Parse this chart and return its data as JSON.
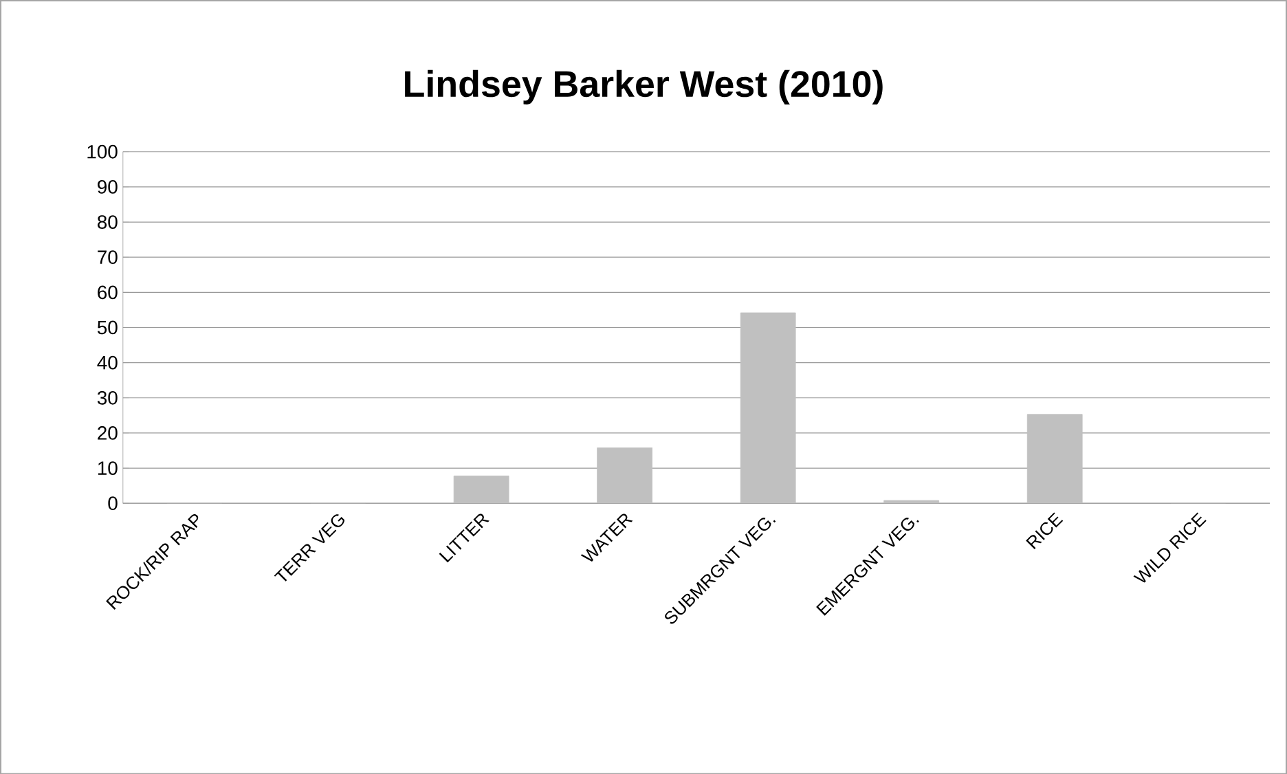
{
  "chart_data": {
    "type": "bar",
    "title": "Lindsey Barker West (2010)",
    "categories": [
      "ROCK/RIP RAP",
      "TERR VEG",
      "LITTER",
      "WATER",
      "SUBMRGNT VEG.",
      "EMERGNT VEG.",
      "RICE",
      "WILD RICE"
    ],
    "values": [
      0,
      0,
      7.8,
      15.8,
      54.2,
      0.8,
      25.3,
      0
    ],
    "color": "#c0c0c0",
    "ylim": [
      0,
      100
    ],
    "yticks": [
      0,
      10,
      20,
      30,
      40,
      50,
      60,
      70,
      80,
      90,
      100
    ],
    "grid": "y"
  }
}
